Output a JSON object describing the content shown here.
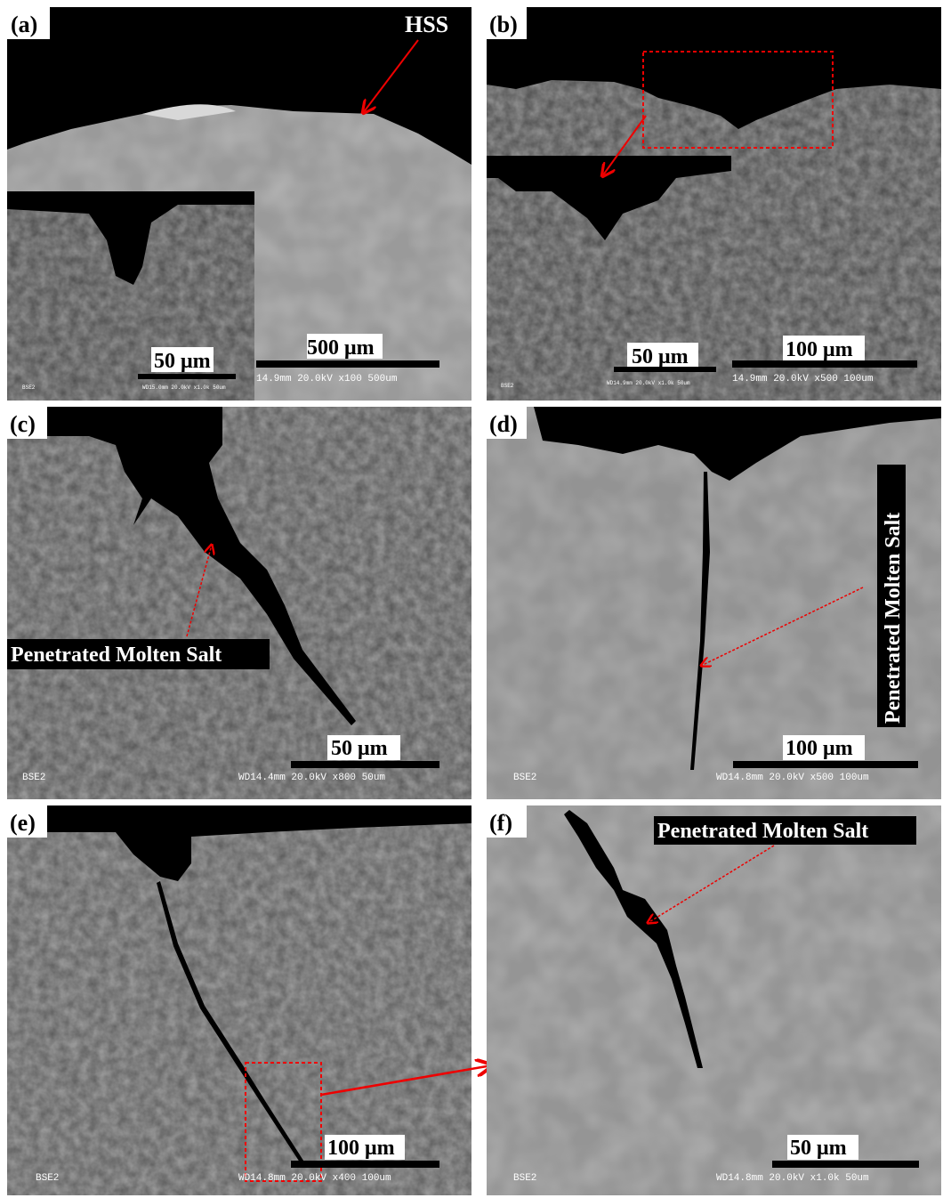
{
  "panels": [
    {
      "label": "(a)",
      "annotation": "HSS",
      "inset_scale": "50 μm",
      "inset_info": "WD15.0mm 20.0kV x1.0k  50um",
      "inset_detector": "BSE2",
      "scale": "500 μm",
      "info": "14.9mm 20.0kV x100   500um"
    },
    {
      "label": "(b)",
      "inset_scale": "50 μm",
      "inset_info": "WD14.9mm 20.0kV x1.0k  50um",
      "inset_detector": "BSE2",
      "scale": "100 μm",
      "info": "14.9mm 20.0kV x500   100um"
    },
    {
      "label": "(c)",
      "annotation": "Penetrated Molten Salt",
      "scale": "50 μm",
      "detector": "BSE2",
      "info": "WD14.4mm 20.0kV x800    50um"
    },
    {
      "label": "(d)",
      "annotation": "Penetrated Molten Salt",
      "scale": "100 μm",
      "detector": "BSE2",
      "info": "WD14.8mm 20.0kV x500   100um"
    },
    {
      "label": "(e)",
      "scale": "100 μm",
      "detector": "BSE2",
      "info": "WD14.8mm 20.0kV x400   100um"
    },
    {
      "label": "(f)",
      "annotation": "Penetrated Molten Salt",
      "scale": "50 μm",
      "detector": "BSE2",
      "info": "WD14.8mm 20.0kV x1.0k   50um"
    }
  ]
}
